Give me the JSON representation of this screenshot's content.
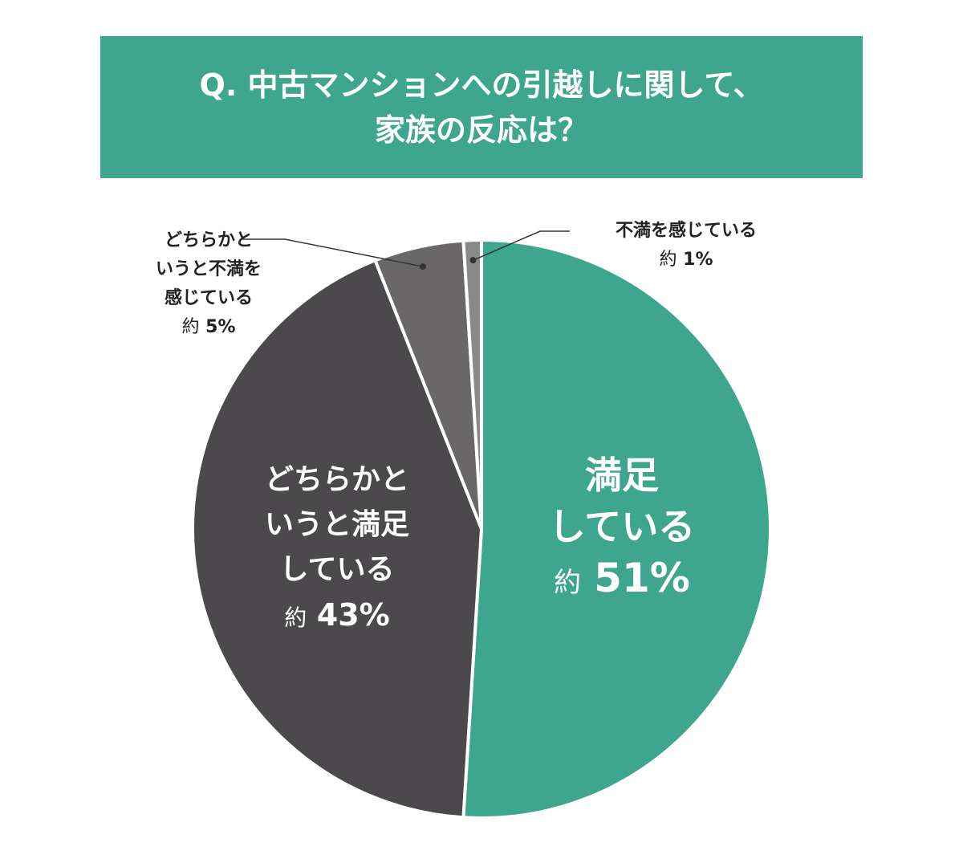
{
  "chart_data": {
    "type": "pie",
    "title": [
      "Q. 中古マンションへの引越しに関して、",
      "家族の反応は？"
    ],
    "slices": [
      {
        "label": [
          "満足",
          "している"
        ],
        "prefix": "約",
        "value": 51,
        "value_text": "51%",
        "color": "#3ea58f"
      },
      {
        "label": [
          "どちらかと",
          "いうと満足",
          "している"
        ],
        "prefix": "約",
        "value": 43,
        "value_text": "43%",
        "color": "#4b494c"
      },
      {
        "label": [
          "どちらかと",
          "いうと不満を",
          "感じている"
        ],
        "prefix": "約",
        "value": 5,
        "value_text": "5%",
        "color": "#6a6769"
      },
      {
        "label": [
          "不満を感じている"
        ],
        "prefix": "約",
        "value": 1,
        "value_text": "1%",
        "color": "#8b888a"
      }
    ],
    "start": "top",
    "direction": "clockwise"
  }
}
